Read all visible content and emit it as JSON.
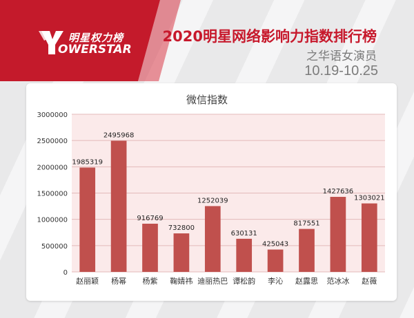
{
  "header": {
    "brand_cn": "明星权力榜",
    "brand_en": "OWERSTAR",
    "title": "2020明星网络影响力指数排行榜",
    "subtitle": "之华语女演员",
    "date_range": "10.19-10.25"
  },
  "colors": {
    "accent": "#c7192c",
    "bar": "#c0504d",
    "plot_bg": "#fbeaea"
  },
  "chart_data": {
    "type": "bar",
    "title": "微信指数",
    "categories": [
      "赵丽颖",
      "杨幂",
      "杨紫",
      "鞠婧祎",
      "迪丽热巴",
      "谭松韵",
      "李沁",
      "赵露思",
      "范冰冰",
      "赵薇"
    ],
    "values": [
      1985319,
      2495968,
      916769,
      732800,
      1252039,
      630131,
      425043,
      817551,
      1427636,
      1303021
    ],
    "ylim": [
      0,
      3000000
    ],
    "yticks": [
      0,
      500000,
      1000000,
      1500000,
      2000000,
      2500000,
      3000000
    ],
    "grid": true
  }
}
